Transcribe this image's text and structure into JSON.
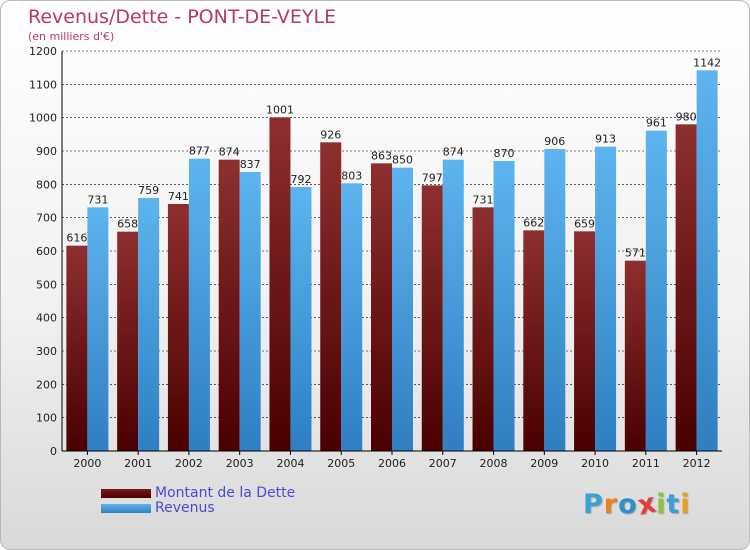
{
  "header": {
    "title": "Revenus/Dette - PONT-DE-VEYLE",
    "subtitle": "(en milliers d'€)"
  },
  "colors": {
    "dette": "#6e0a0a",
    "revenus": "#4ba3e3",
    "grid": "#000000",
    "title": "#b8376a",
    "legend_text": "#4a4ad6"
  },
  "legend": {
    "items": [
      {
        "label": "Montant de la Dette",
        "color": "#6e0a0a"
      },
      {
        "label": "Revenus",
        "color": "#4ba3e3"
      }
    ]
  },
  "logo": {
    "letters": [
      "P",
      "r",
      "o",
      "x",
      "i",
      "t",
      "i"
    ],
    "colors": [
      "#3aa0d8",
      "#e8841a",
      "#2d8fce",
      "#e83b3b",
      "#8ac43f",
      "#3aa0d8",
      "#e8a21a"
    ]
  },
  "chart_data": {
    "type": "bar",
    "title": "Revenus/Dette - PONT-DE-VEYLE",
    "subtitle": "(en milliers d'€)",
    "categories": [
      "2000",
      "2001",
      "2002",
      "2003",
      "2004",
      "2005",
      "2006",
      "2007",
      "2008",
      "2009",
      "2010",
      "2011",
      "2012"
    ],
    "series": [
      {
        "name": "Montant de la Dette",
        "values": [
          616,
          658,
          741,
          874,
          1001,
          926,
          863,
          797,
          731,
          662,
          659,
          571,
          980
        ]
      },
      {
        "name": "Revenus",
        "values": [
          731,
          759,
          877,
          837,
          792,
          803,
          850,
          874,
          870,
          906,
          913,
          961,
          1142
        ]
      }
    ],
    "ylim": [
      0,
      1200
    ],
    "yticks": [
      0,
      100,
      200,
      300,
      400,
      500,
      600,
      700,
      800,
      900,
      1000,
      1100,
      1200
    ],
    "grid": true,
    "legend_position": "bottom-left",
    "data_labels": true
  }
}
